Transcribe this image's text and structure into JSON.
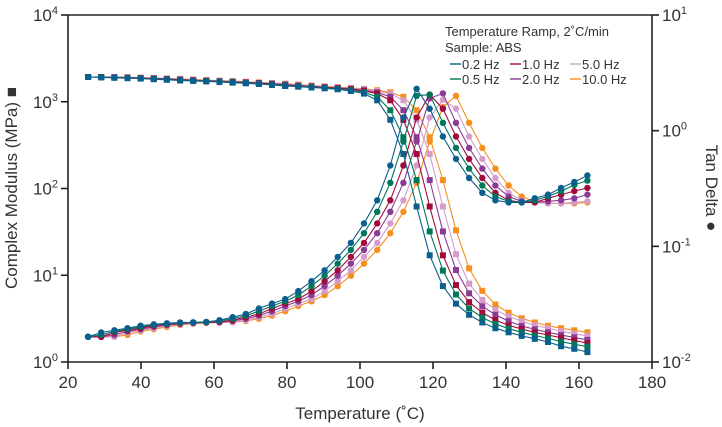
{
  "chart_data": {
    "type": "line",
    "title": "",
    "xlabel": "Temperature (˚C)",
    "ylabel_left": "Complex Modulus (MPa) ■",
    "ylabel_right": "Tan Delta ●",
    "xlim": [
      20,
      180
    ],
    "ylim_left": [
      1,
      10000
    ],
    "ylim_right": [
      0.01,
      10
    ],
    "yscale": "log",
    "grid": false,
    "x_ticks": [
      "20",
      "40",
      "60",
      "80",
      "100",
      "120",
      "140",
      "160",
      "180"
    ],
    "y_left_ticks": [
      {
        "base": "10",
        "exp": "0"
      },
      {
        "base": "10",
        "exp": "1"
      },
      {
        "base": "10",
        "exp": "2"
      },
      {
        "base": "10",
        "exp": "3"
      },
      {
        "base": "10",
        "exp": "4"
      }
    ],
    "y_right_ticks": [
      {
        "base": "10",
        "exp": "-2"
      },
      {
        "base": "10",
        "exp": "-1"
      },
      {
        "base": "10",
        "exp": "0"
      },
      {
        "base": "10",
        "exp": "1"
      }
    ],
    "legend": {
      "placement": "top-right",
      "line1": "Temperature Ramp, 2˚C/min",
      "line2": "Sample: ABS"
    },
    "x": [
      25.5,
      29.1,
      32.7,
      36.3,
      39.9,
      43.5,
      47.1,
      50.7,
      54.3,
      57.9,
      61.5,
      65.1,
      68.7,
      72.3,
      75.9,
      79.5,
      83.1,
      86.7,
      90.3,
      93.9,
      97.5,
      101.1,
      104.7,
      108.3,
      111.9,
      115.5,
      119.1,
      122.7,
      126.3,
      129.9,
      133.5,
      137.1,
      140.7,
      144.3,
      147.9,
      151.5,
      155.1,
      158.7,
      162.3
    ],
    "series": [
      {
        "name": "0.2 Hz",
        "color": "#0b5f8c",
        "modulus": [
          1930,
          1910,
          1890,
          1870,
          1850,
          1820,
          1790,
          1760,
          1740,
          1715,
          1690,
          1660,
          1630,
          1600,
          1560,
          1520,
          1490,
          1460,
          1430,
          1390,
          1330,
          1240,
          1040,
          620,
          250,
          62,
          17,
          7.5,
          4.7,
          3.5,
          2.85,
          2.45,
          2.2,
          2.0,
          1.85,
          1.7,
          1.52,
          1.42,
          1.3
        ],
        "tan_delta": [
          0.0165,
          0.018,
          0.0188,
          0.0196,
          0.0206,
          0.0212,
          0.0216,
          0.022,
          0.022,
          0.0222,
          0.023,
          0.0244,
          0.026,
          0.029,
          0.032,
          0.035,
          0.041,
          0.05,
          0.062,
          0.081,
          0.107,
          0.158,
          0.25,
          0.5,
          1.3,
          2.3,
          1.55,
          0.89,
          0.57,
          0.39,
          0.29,
          0.25,
          0.24,
          0.24,
          0.26,
          0.28,
          0.32,
          0.36,
          0.41
        ]
      },
      {
        "name": "0.5 Hz",
        "color": "#00775a",
        "modulus": [
          1930,
          1920,
          1900,
          1880,
          1860,
          1835,
          1805,
          1775,
          1750,
          1728,
          1702,
          1675,
          1645,
          1615,
          1580,
          1540,
          1505,
          1475,
          1445,
          1410,
          1360,
          1285,
          1140,
          800,
          390,
          125,
          32,
          11.3,
          6.0,
          4.15,
          3.25,
          2.75,
          2.42,
          2.2,
          2.02,
          1.87,
          1.72,
          1.6,
          1.5
        ],
        "tan_delta": [
          0.0165,
          0.0172,
          0.0184,
          0.0192,
          0.0201,
          0.0209,
          0.0214,
          0.0218,
          0.022,
          0.0221,
          0.0226,
          0.0237,
          0.0252,
          0.0275,
          0.0305,
          0.0335,
          0.0379,
          0.0453,
          0.0557,
          0.0709,
          0.0931,
          0.13,
          0.199,
          0.354,
          0.806,
          2.0,
          2.05,
          1.17,
          0.71,
          0.47,
          0.336,
          0.269,
          0.245,
          0.24,
          0.25,
          0.27,
          0.3,
          0.34,
          0.37
        ]
      },
      {
        "name": "1.0 Hz",
        "color": "#a30a3c",
        "modulus": [
          1930,
          1930,
          1910,
          1890,
          1870,
          1850,
          1820,
          1790,
          1760,
          1740,
          1715,
          1690,
          1660,
          1630,
          1600,
          1560,
          1520,
          1490,
          1460,
          1430,
          1390,
          1330,
          1240,
          1040,
          620,
          250,
          62,
          17,
          7.7,
          4.9,
          3.7,
          3.05,
          2.65,
          2.4,
          2.2,
          2.05,
          1.9,
          1.77,
          1.65
        ],
        "tan_delta": [
          0.0165,
          0.0165,
          0.018,
          0.0188,
          0.0196,
          0.0206,
          0.0212,
          0.0216,
          0.022,
          0.022,
          0.0222,
          0.023,
          0.0244,
          0.026,
          0.029,
          0.032,
          0.035,
          0.041,
          0.05,
          0.062,
          0.081,
          0.107,
          0.158,
          0.25,
          0.5,
          1.3,
          2.05,
          1.55,
          0.89,
          0.57,
          0.39,
          0.29,
          0.25,
          0.24,
          0.24,
          0.26,
          0.28,
          0.3,
          0.32
        ]
      },
      {
        "name": "2.0 Hz",
        "color": "#8a3b95",
        "modulus": [
          1930,
          1930,
          1920,
          1900,
          1880,
          1860,
          1835,
          1805,
          1775,
          1750,
          1728,
          1702,
          1675,
          1645,
          1615,
          1580,
          1540,
          1505,
          1475,
          1445,
          1410,
          1360,
          1285,
          1140,
          800,
          390,
          125,
          32,
          11.5,
          6.2,
          4.4,
          3.5,
          2.95,
          2.6,
          2.38,
          2.2,
          2.04,
          1.92,
          1.8
        ],
        "tan_delta": [
          0.0165,
          0.0165,
          0.0172,
          0.0184,
          0.0192,
          0.0201,
          0.0209,
          0.0214,
          0.0218,
          0.022,
          0.0221,
          0.0226,
          0.0237,
          0.0252,
          0.0275,
          0.0305,
          0.0335,
          0.0379,
          0.0453,
          0.0557,
          0.0709,
          0.0931,
          0.13,
          0.199,
          0.354,
          0.806,
          1.9,
          2.1,
          1.17,
          0.71,
          0.47,
          0.336,
          0.269,
          0.245,
          0.24,
          0.245,
          0.25,
          0.26,
          0.28
        ]
      },
      {
        "name": "5.0 Hz",
        "color": "#d59ccb",
        "modulus": [
          1930,
          1930,
          1930,
          1910,
          1890,
          1870,
          1850,
          1820,
          1790,
          1760,
          1740,
          1715,
          1690,
          1660,
          1630,
          1600,
          1560,
          1520,
          1490,
          1460,
          1430,
          1390,
          1330,
          1240,
          1040,
          620,
          250,
          62,
          17.5,
          8.0,
          5.2,
          4.0,
          3.35,
          2.95,
          2.65,
          2.45,
          2.27,
          2.12,
          2.0
        ],
        "tan_delta": [
          0.0165,
          0.0165,
          0.0165,
          0.018,
          0.0188,
          0.0196,
          0.0206,
          0.0212,
          0.0216,
          0.022,
          0.022,
          0.0222,
          0.023,
          0.0244,
          0.026,
          0.029,
          0.032,
          0.035,
          0.041,
          0.05,
          0.062,
          0.081,
          0.107,
          0.158,
          0.25,
          0.5,
          1.3,
          1.85,
          1.55,
          0.89,
          0.57,
          0.39,
          0.29,
          0.25,
          0.24,
          0.235,
          0.235,
          0.24,
          0.245
        ]
      },
      {
        "name": "10.0 Hz",
        "color": "#f5901e",
        "modulus": [
          1930,
          1930,
          1930,
          1920,
          1900,
          1880,
          1860,
          1835,
          1805,
          1775,
          1750,
          1728,
          1702,
          1675,
          1645,
          1615,
          1580,
          1540,
          1505,
          1475,
          1445,
          1410,
          1360,
          1285,
          1140,
          800,
          390,
          125,
          33,
          12.0,
          6.6,
          4.6,
          3.7,
          3.2,
          2.85,
          2.62,
          2.45,
          2.32,
          2.2
        ],
        "tan_delta": [
          0.0165,
          0.0165,
          0.0165,
          0.0172,
          0.0184,
          0.0192,
          0.0201,
          0.0209,
          0.0214,
          0.0218,
          0.022,
          0.0221,
          0.0226,
          0.0237,
          0.0252,
          0.0275,
          0.0305,
          0.0335,
          0.0379,
          0.0453,
          0.0557,
          0.0709,
          0.0931,
          0.13,
          0.199,
          0.354,
          0.806,
          1.6,
          2.0,
          1.17,
          0.71,
          0.47,
          0.336,
          0.269,
          0.245,
          0.235,
          0.235,
          0.235,
          0.24
        ]
      }
    ]
  }
}
